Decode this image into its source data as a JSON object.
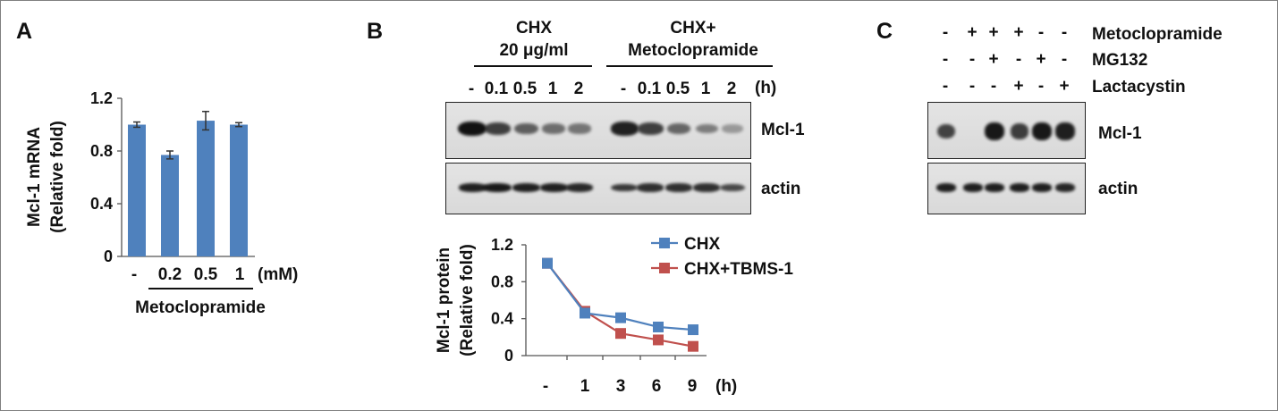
{
  "panels": {
    "a": "A",
    "b": "B",
    "c": "C"
  },
  "colors": {
    "bar": "#4f81bd",
    "series_chx": "#4f81bd",
    "series_tbms": "#c0504d",
    "band": "#111111"
  },
  "chart_data": [
    {
      "type": "bar",
      "panel": "A",
      "title": "",
      "ylabel_lines": [
        "Mcl-1 mRNA",
        "(Relative fold)"
      ],
      "categories": [
        "-",
        "0.2",
        "0.5",
        "1"
      ],
      "values": [
        1.0,
        0.77,
        1.03,
        1.0
      ],
      "errors": [
        0.02,
        0.03,
        0.07,
        0.015
      ],
      "yticks": [
        "0",
        "0.4",
        "0.8",
        "1.2"
      ],
      "ylim": [
        0,
        1.2
      ],
      "unit": "(mM)",
      "xlabel": "Metoclopramide",
      "grid": false
    },
    {
      "type": "line",
      "panel": "B",
      "title": "",
      "ylabel_lines": [
        "Mcl-1 protein",
        "(Relative fold)"
      ],
      "categories": [
        "-",
        "1",
        "3",
        "6",
        "9"
      ],
      "series": [
        {
          "name": "CHX",
          "values": [
            1.0,
            0.46,
            0.41,
            0.31,
            0.28
          ]
        },
        {
          "name": "CHX+TBMS-1",
          "values": [
            1.0,
            0.48,
            0.24,
            0.17,
            0.1
          ]
        }
      ],
      "yticks": [
        "0",
        "0.4",
        "0.8",
        "1.2"
      ],
      "ylim": [
        0,
        1.2
      ],
      "unit": "(h)",
      "legend": "top-right",
      "grid": false
    }
  ],
  "blot_b": {
    "group1_lines": [
      "CHX",
      "20 μg/ml"
    ],
    "group2_lines": [
      "CHX+",
      "Metoclopramide"
    ],
    "lanes": [
      "-",
      "0.1",
      "0.5",
      "1",
      "2",
      "-",
      "0.1",
      "0.5",
      "1",
      "2"
    ],
    "unit": "(h)",
    "rows": [
      "Mcl-1",
      "actin"
    ],
    "mcl1_intensity": [
      1.0,
      0.7,
      0.5,
      0.4,
      0.35,
      0.9,
      0.7,
      0.45,
      0.3,
      0.12
    ],
    "actin_intensity": [
      0.9,
      0.95,
      0.9,
      0.9,
      0.85,
      0.75,
      0.8,
      0.8,
      0.8,
      0.65
    ]
  },
  "blot_c": {
    "row_labels": [
      "Metoclopramide",
      "MG132",
      "Lactacystin"
    ],
    "signs": [
      [
        "-",
        "+",
        "+",
        "+",
        "-",
        "-"
      ],
      [
        "-",
        "-",
        "+",
        "-",
        "+",
        "-"
      ],
      [
        "-",
        "-",
        "-",
        "+",
        "-",
        "+"
      ]
    ],
    "rows": [
      "Mcl-1",
      "actin"
    ],
    "mcl1_intensity": [
      0.65,
      0.0,
      0.95,
      0.7,
      0.95,
      0.9
    ],
    "actin_intensity": [
      0.9,
      0.9,
      0.9,
      0.9,
      0.9,
      0.85
    ]
  }
}
